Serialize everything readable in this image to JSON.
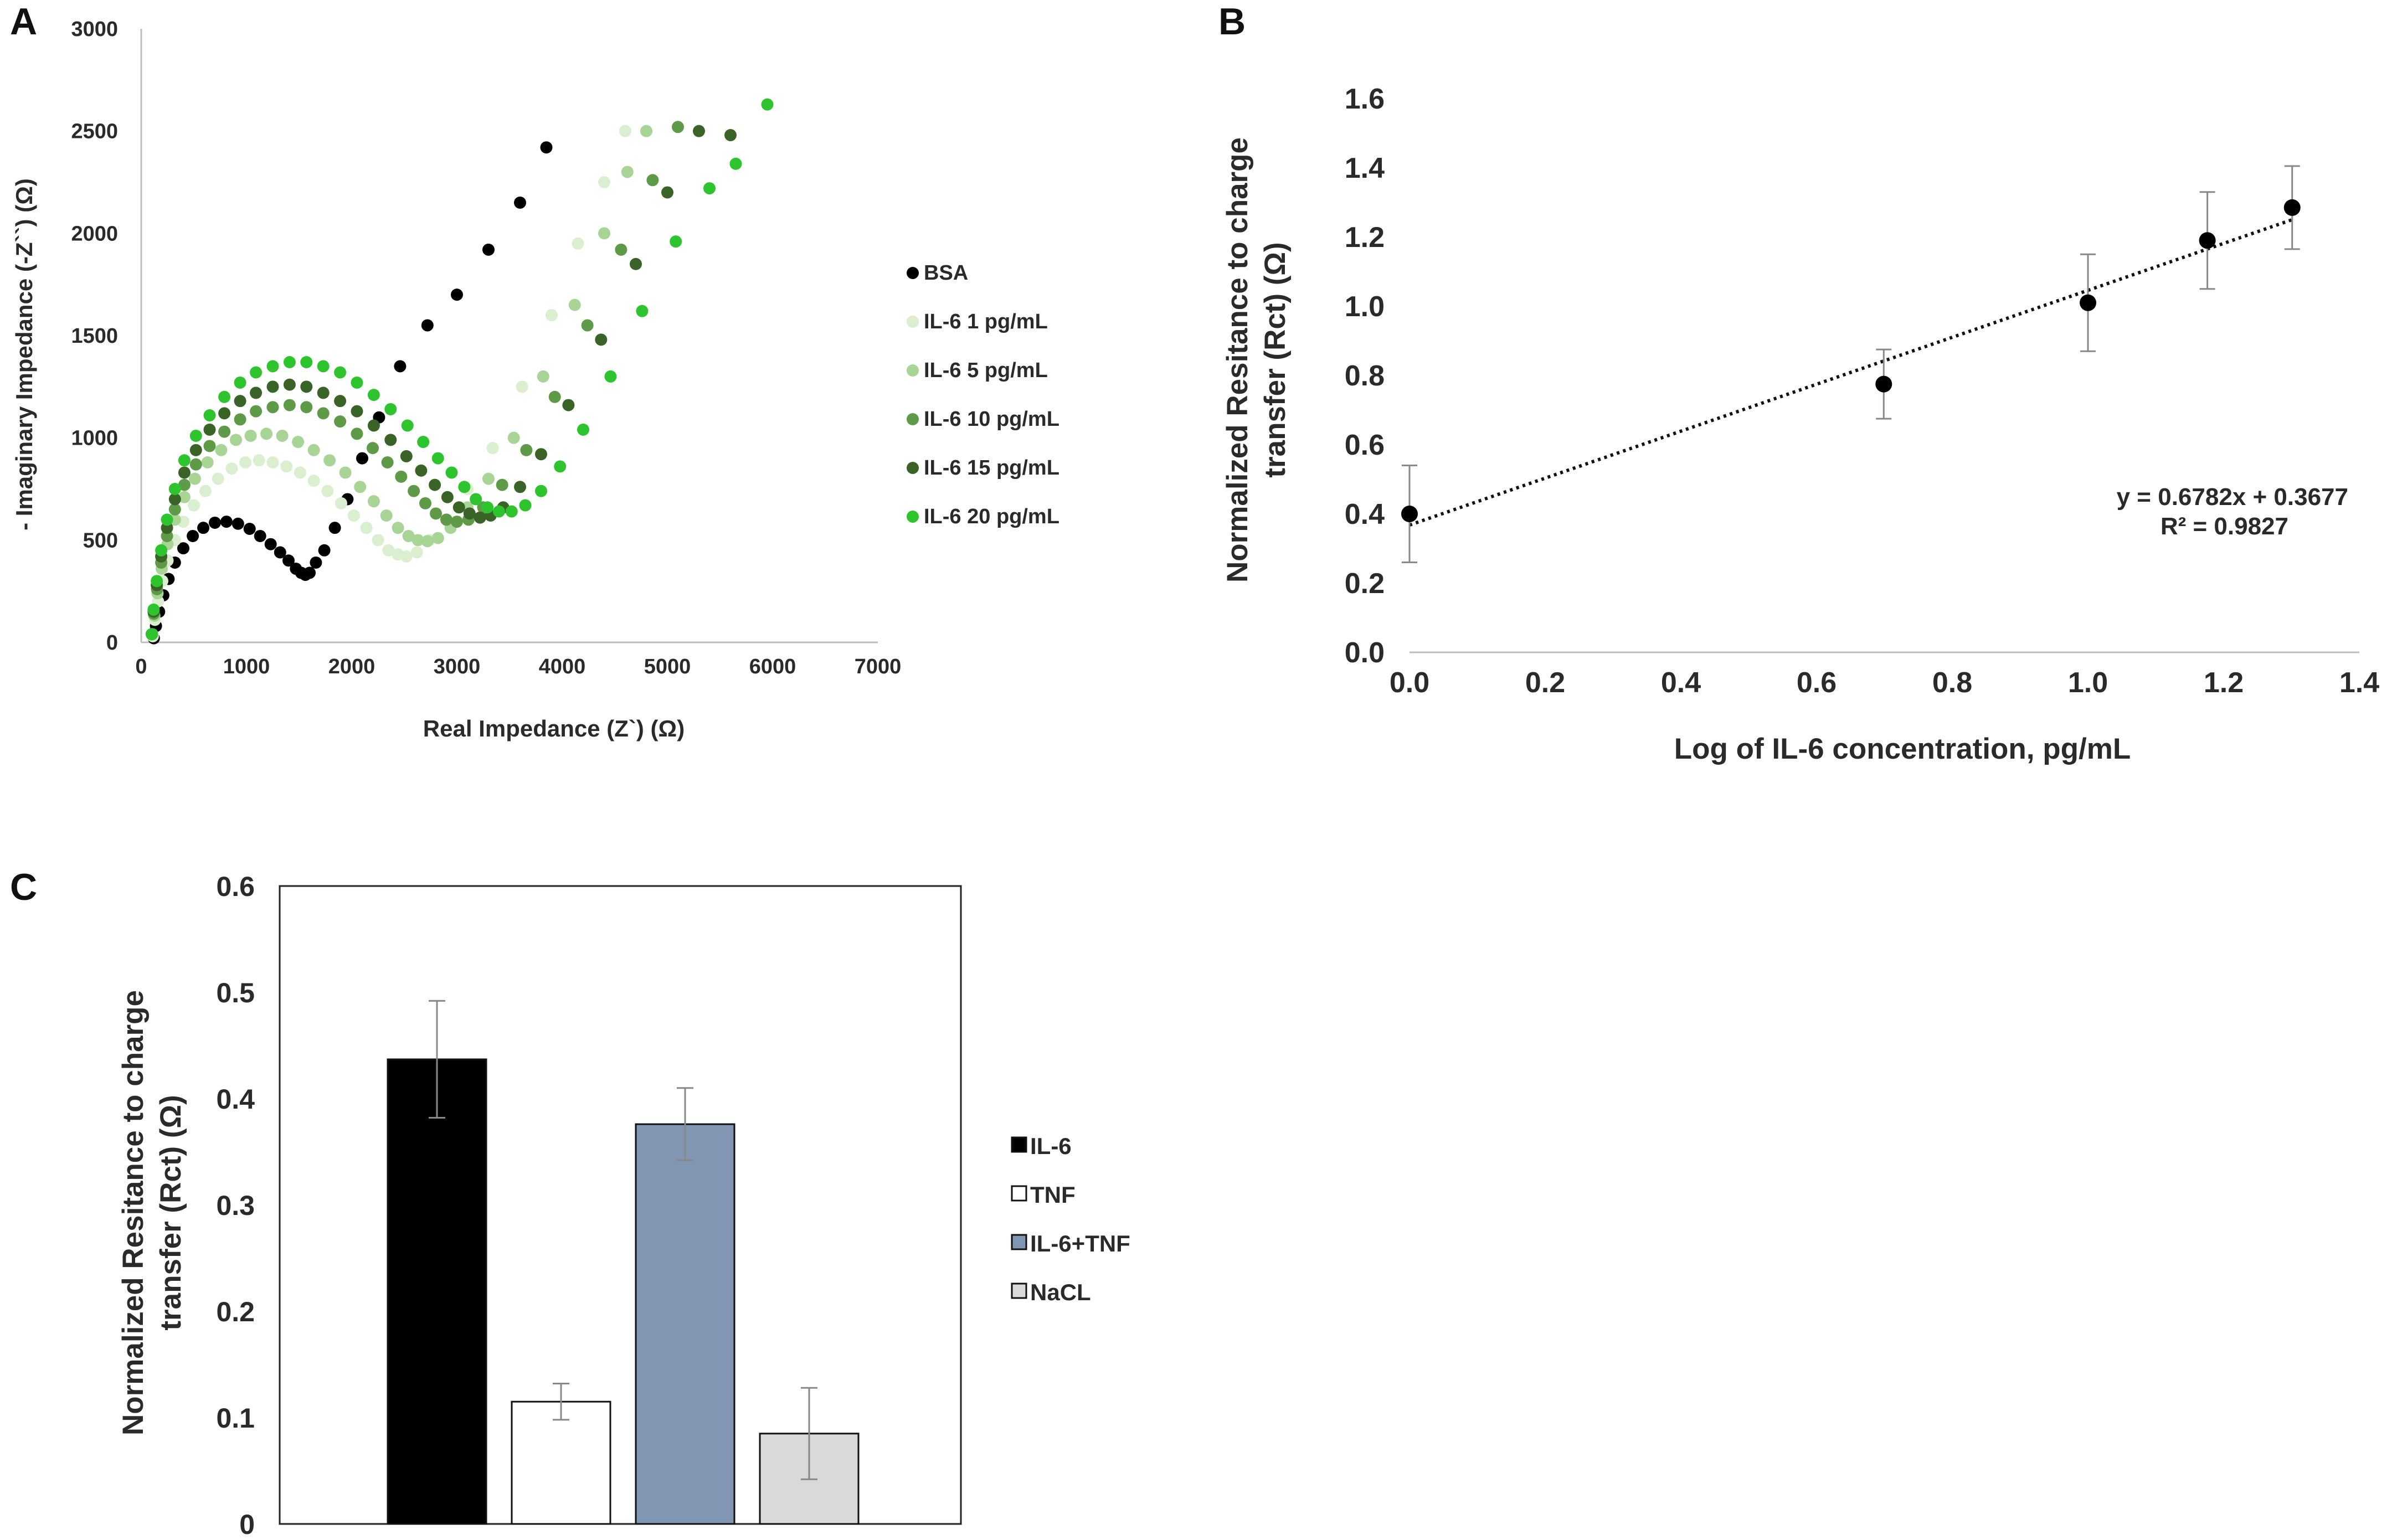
{
  "chart_data": [
    {
      "panel": "A",
      "type": "scatter",
      "title": "",
      "xlabel": "Real Impedance (Z`) (Ω)",
      "ylabel": "- Imaginary Impedance (-Z``) (Ω)",
      "xlim": [
        0,
        7000
      ],
      "ylim": [
        0,
        3000
      ],
      "xticks": [
        0,
        1000,
        2000,
        3000,
        4000,
        5000,
        6000,
        7000
      ],
      "yticks": [
        0,
        500,
        1000,
        1500,
        2000,
        2500,
        3000
      ],
      "legend_position": "right",
      "series": [
        {
          "name": "BSA",
          "color": "#000000",
          "x": [
            120,
            140,
            170,
            210,
            260,
            320,
            400,
            490,
            590,
            700,
            810,
            920,
            1030,
            1130,
            1230,
            1320,
            1400,
            1470,
            1520,
            1560,
            1600,
            1660,
            1740,
            1840,
            1960,
            2100,
            2260,
            2460,
            2720,
            3000,
            3300,
            3600,
            3850
          ],
          "y": [
            20,
            80,
            150,
            230,
            310,
            390,
            460,
            520,
            560,
            585,
            590,
            580,
            555,
            520,
            480,
            440,
            400,
            360,
            340,
            330,
            340,
            390,
            450,
            560,
            700,
            900,
            1100,
            1350,
            1550,
            1700,
            1920,
            2150,
            2420
          ]
        },
        {
          "name": "IL-6 1 pg/mL",
          "color": "#d9efcf",
          "x": [
            110,
            130,
            160,
            200,
            250,
            320,
            400,
            500,
            610,
            730,
            860,
            990,
            1120,
            1250,
            1380,
            1510,
            1640,
            1770,
            1900,
            2020,
            2140,
            2250,
            2350,
            2440,
            2520,
            2620,
            2740,
            2900,
            3100,
            3340,
            3620,
            3900,
            4150,
            4400,
            4600
          ],
          "y": [
            30,
            110,
            200,
            300,
            400,
            500,
            590,
            670,
            740,
            800,
            850,
            880,
            890,
            880,
            860,
            830,
            790,
            740,
            680,
            620,
            560,
            500,
            450,
            430,
            420,
            440,
            500,
            600,
            750,
            950,
            1250,
            1600,
            1950,
            2250,
            2500
          ]
        },
        {
          "name": "IL-6 5 pg/mL",
          "color": "#a8d596",
          "x": [
            105,
            125,
            155,
            195,
            250,
            320,
            410,
            510,
            630,
            760,
            900,
            1040,
            1190,
            1340,
            1490,
            1640,
            1790,
            1940,
            2080,
            2210,
            2330,
            2440,
            2540,
            2630,
            2720,
            2820,
            2940,
            3100,
            3300,
            3540,
            3820,
            4120,
            4400,
            4620,
            4800
          ],
          "y": [
            40,
            130,
            240,
            360,
            480,
            600,
            710,
            800,
            880,
            940,
            990,
            1010,
            1020,
            1010,
            980,
            940,
            890,
            830,
            760,
            690,
            620,
            560,
            520,
            500,
            495,
            510,
            560,
            660,
            800,
            1000,
            1300,
            1650,
            2000,
            2300,
            2500
          ]
        },
        {
          "name": "IL-6 10 pg/mL",
          "color": "#5f9a48",
          "x": [
            100,
            120,
            150,
            190,
            245,
            320,
            410,
            520,
            650,
            790,
            940,
            1090,
            1250,
            1410,
            1570,
            1730,
            1890,
            2050,
            2200,
            2340,
            2470,
            2590,
            2700,
            2800,
            2900,
            3000,
            3110,
            3250,
            3430,
            3660,
            3930,
            4240,
            4560,
            4860,
            5100
          ],
          "y": [
            40,
            140,
            260,
            390,
            520,
            650,
            770,
            870,
            960,
            1030,
            1090,
            1130,
            1150,
            1160,
            1150,
            1120,
            1080,
            1020,
            950,
            880,
            810,
            740,
            680,
            630,
            600,
            590,
            600,
            660,
            770,
            940,
            1200,
            1550,
            1920,
            2260,
            2520
          ]
        },
        {
          "name": "IL-6 15 pg/mL",
          "color": "#3a6427",
          "x": [
            100,
            118,
            148,
            190,
            245,
            320,
            410,
            520,
            650,
            790,
            940,
            1090,
            1250,
            1410,
            1570,
            1730,
            1890,
            2050,
            2210,
            2370,
            2520,
            2660,
            2790,
            2910,
            3020,
            3120,
            3220,
            3320,
            3440,
            3600,
            3800,
            4060,
            4370,
            4700,
            5000,
            5300,
            5600
          ],
          "y": [
            40,
            150,
            280,
            420,
            560,
            700,
            830,
            940,
            1040,
            1120,
            1180,
            1220,
            1250,
            1260,
            1250,
            1220,
            1180,
            1130,
            1060,
            990,
            910,
            840,
            770,
            710,
            660,
            630,
            610,
            620,
            660,
            760,
            920,
            1160,
            1480,
            1850,
            2200,
            2500,
            2480
          ]
        },
        {
          "name": "IL-6 20 pg/mL",
          "color": "#2ec42e",
          "x": [
            100,
            118,
            148,
            190,
            245,
            320,
            410,
            520,
            650,
            790,
            940,
            1090,
            1250,
            1410,
            1570,
            1730,
            1890,
            2050,
            2210,
            2370,
            2530,
            2680,
            2820,
            2950,
            3070,
            3180,
            3290,
            3400,
            3520,
            3650,
            3800,
            3980,
            4200,
            4460,
            4760,
            5080,
            5400,
            5650,
            5950
          ],
          "y": [
            40,
            160,
            300,
            450,
            600,
            750,
            890,
            1010,
            1110,
            1200,
            1270,
            1320,
            1350,
            1370,
            1370,
            1350,
            1320,
            1270,
            1210,
            1140,
            1060,
            980,
            900,
            830,
            760,
            700,
            660,
            640,
            640,
            670,
            740,
            860,
            1040,
            1300,
            1620,
            1960,
            2220,
            2340,
            2630
          ]
        }
      ]
    },
    {
      "panel": "B",
      "type": "scatter",
      "title": "",
      "xlabel": "Log of IL-6 concentration, pg/mL",
      "ylabel": "Normalized Resitance to charge transfer (Rct) (Ω)",
      "ylabel_lines": [
        "Normalized Resitance to charge",
        "transfer (Rct) (Ω)"
      ],
      "xlim": [
        0,
        1.4
      ],
      "ylim": [
        0,
        1.6
      ],
      "xticks": [
        "0.0",
        "0.2",
        "0.4",
        "0.6",
        "0.8",
        "1.0",
        "1.2",
        "1.4"
      ],
      "yticks": [
        "0.0",
        "0.2",
        "0.4",
        "0.6",
        "0.8",
        "1.0",
        "1.2",
        "1.4",
        "1.6"
      ],
      "series": [
        {
          "name": "data",
          "color": "#000000",
          "x": [
            0.0,
            0.699,
            1.0,
            1.176,
            1.301
          ],
          "y": [
            0.4,
            0.775,
            1.01,
            1.19,
            1.285
          ],
          "err": [
            0.14,
            0.1,
            0.14,
            0.14,
            0.12
          ]
        }
      ],
      "trendline": {
        "slope": 0.6782,
        "intercept": 0.3677,
        "x_range": [
          0,
          1.3
        ],
        "style": "dotted"
      },
      "annotations": [
        "y = 0.6782x + 0.3677",
        "R² = 0.9827"
      ]
    },
    {
      "panel": "C",
      "type": "bar",
      "title": "",
      "xlabel": "",
      "ylabel": "Normalized Resitance to charge transfer (Rct) (Ω)",
      "ylabel_lines": [
        "Normalized Resitance to charge",
        "transfer (Rct) (Ω)"
      ],
      "ylim": [
        0,
        0.6
      ],
      "yticks": [
        "0",
        "0.1",
        "0.2",
        "0.3",
        "0.4",
        "0.5",
        "0.6"
      ],
      "categories": [
        "IL-6",
        "TNF",
        "IL-6+TNF",
        "NaCL"
      ],
      "values": [
        0.437,
        0.115,
        0.376,
        0.085
      ],
      "errors": [
        0.055,
        0.017,
        0.034,
        0.043
      ],
      "colors": [
        "#000000",
        "#ffffff",
        "#8096b2",
        "#d9d9d9"
      ],
      "legend_position": "right"
    }
  ],
  "panel_labels": {
    "a": "A",
    "b": "B",
    "c": "C"
  }
}
